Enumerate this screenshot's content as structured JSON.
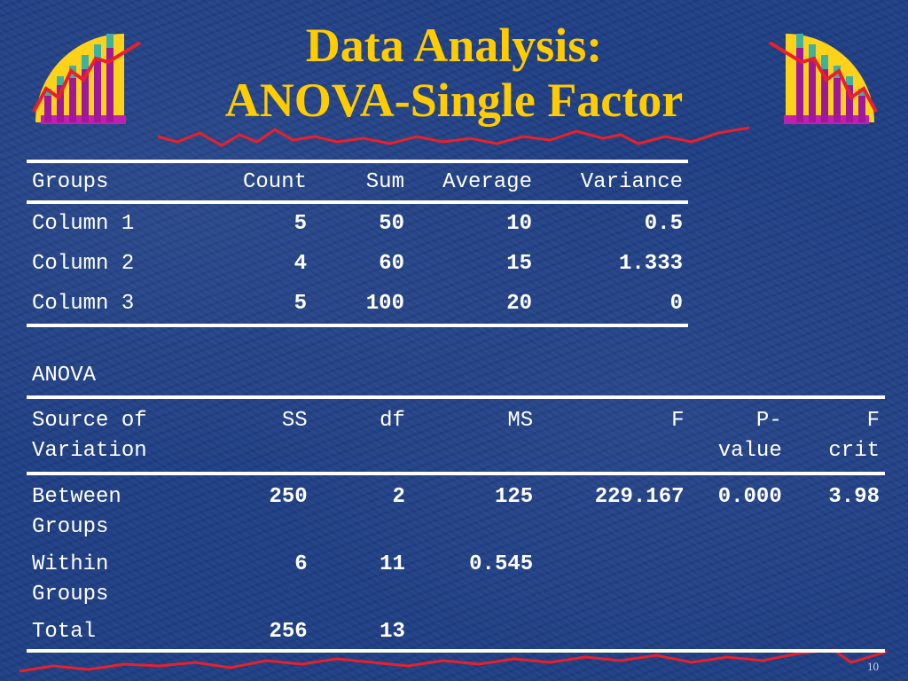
{
  "slide": {
    "title_line1": "Data Analysis:",
    "title_line2": "ANOVA-Single Factor",
    "page_number": "10"
  },
  "summary": {
    "headers": [
      "Groups",
      "Count",
      "Sum",
      "Average",
      "Variance"
    ],
    "rows": [
      [
        "Column 1",
        "5",
        "50",
        "10",
        "0.5"
      ],
      [
        "Column 2",
        "4",
        "60",
        "15",
        "1.333"
      ],
      [
        "Column 3",
        "5",
        "100",
        "20",
        "0"
      ]
    ]
  },
  "anova": {
    "label": "ANOVA",
    "headers": [
      [
        "Source of",
        "Variation"
      ],
      [
        "SS"
      ],
      [
        "df"
      ],
      [
        "MS"
      ],
      [
        "F"
      ],
      [
        "P-",
        "value"
      ],
      [
        "F",
        "crit"
      ]
    ],
    "rows": [
      {
        "source": [
          "Between",
          "Groups"
        ],
        "ss": "250",
        "df": "2",
        "ms": "125",
        "f": "229.167",
        "p": "0.000",
        "fcrit": "3.98"
      },
      {
        "source": [
          "Within",
          "Groups"
        ],
        "ss": "6",
        "df": "11",
        "ms": "0.545",
        "f": "",
        "p": "",
        "fcrit": ""
      },
      {
        "source": [
          "Total"
        ],
        "ss": "256",
        "df": "13",
        "ms": "",
        "f": "",
        "p": "",
        "fcrit": ""
      }
    ]
  },
  "colors": {
    "title": "#ffcc00",
    "background": "#1f3f86",
    "accent_line": "#e8202a"
  },
  "icons": {
    "logo": "bar-chart-icon"
  }
}
